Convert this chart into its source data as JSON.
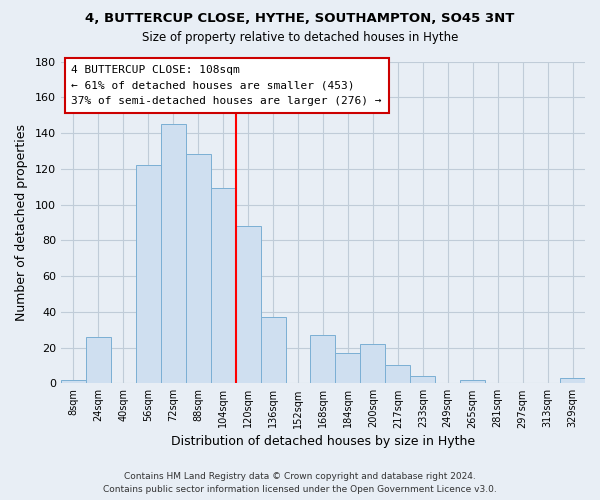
{
  "title": "4, BUTTERCUP CLOSE, HYTHE, SOUTHAMPTON, SO45 3NT",
  "subtitle": "Size of property relative to detached houses in Hythe",
  "xlabel": "Distribution of detached houses by size in Hythe",
  "ylabel": "Number of detached properties",
  "footer_lines": [
    "Contains HM Land Registry data © Crown copyright and database right 2024.",
    "Contains public sector information licensed under the Open Government Licence v3.0."
  ],
  "bin_labels": [
    "8sqm",
    "24sqm",
    "40sqm",
    "56sqm",
    "72sqm",
    "88sqm",
    "104sqm",
    "120sqm",
    "136sqm",
    "152sqm",
    "168sqm",
    "184sqm",
    "200sqm",
    "217sqm",
    "233sqm",
    "249sqm",
    "265sqm",
    "281sqm",
    "297sqm",
    "313sqm",
    "329sqm"
  ],
  "bar_values": [
    2,
    26,
    0,
    122,
    145,
    128,
    109,
    88,
    37,
    0,
    27,
    17,
    22,
    10,
    4,
    0,
    2,
    0,
    0,
    0,
    3
  ],
  "bar_color": "#cfdff0",
  "bar_edge_color": "#7bafd4",
  "reference_line_x": 6.5,
  "reference_line_color": "red",
  "ylim": [
    0,
    180
  ],
  "yticks": [
    0,
    20,
    40,
    60,
    80,
    100,
    120,
    140,
    160,
    180
  ],
  "annotation_title": "4 BUTTERCUP CLOSE: 108sqm",
  "annotation_line1": "← 61% of detached houses are smaller (453)",
  "annotation_line2": "37% of semi-detached houses are larger (276) →",
  "annotation_box_color": "white",
  "annotation_box_edge": "#cc0000",
  "background_color": "#e8eef5",
  "plot_bg_color": "#e8eef5",
  "grid_color": "#c0ccd8"
}
